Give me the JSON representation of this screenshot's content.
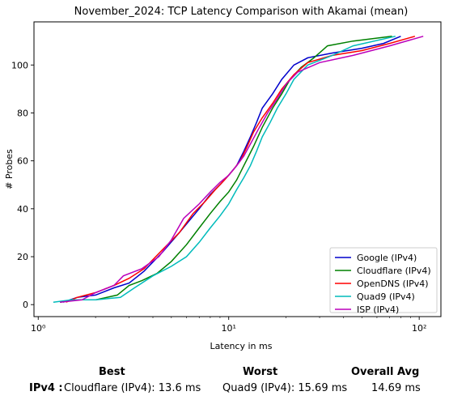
{
  "chart_data": {
    "type": "line",
    "title": "November_2024: TCP Latency Comparison with Akamai (mean)",
    "xlabel": "Latency in ms",
    "ylabel": "# Probes",
    "xscale": "log",
    "xlim": [
      0.95,
      130
    ],
    "ylim": [
      -5,
      118
    ],
    "x_ticks": [
      {
        "value": 1,
        "label": "10⁰"
      },
      {
        "value": 10,
        "label": "10¹"
      },
      {
        "value": 100,
        "label": "10²"
      }
    ],
    "y_ticks": [
      0,
      20,
      40,
      60,
      80,
      100
    ],
    "legend_position": "bottom-right",
    "grid": false,
    "series": [
      {
        "name": "Google (IPv4)",
        "color": "#0000cc",
        "points": [
          [
            1.35,
            1
          ],
          [
            1.6,
            3
          ],
          [
            2.0,
            4
          ],
          [
            2.5,
            7
          ],
          [
            3.0,
            9
          ],
          [
            3.6,
            14
          ],
          [
            4.5,
            22
          ],
          [
            5.5,
            30
          ],
          [
            7.0,
            40
          ],
          [
            8.0,
            46
          ],
          [
            9.0,
            50
          ],
          [
            10.0,
            54
          ],
          [
            11.0,
            58
          ],
          [
            12.0,
            64
          ],
          [
            13.0,
            70
          ],
          [
            14.0,
            76
          ],
          [
            15.0,
            82
          ],
          [
            17.0,
            88
          ],
          [
            19.0,
            94
          ],
          [
            22.0,
            100
          ],
          [
            26.0,
            103
          ],
          [
            35.0,
            105
          ],
          [
            50.0,
            107
          ],
          [
            65.0,
            109
          ],
          [
            80.0,
            112
          ]
        ]
      },
      {
        "name": "Cloudflare (IPv4)",
        "color": "#008000",
        "points": [
          [
            1.3,
            1
          ],
          [
            1.6,
            2
          ],
          [
            2.0,
            2
          ],
          [
            2.6,
            4
          ],
          [
            3.0,
            8
          ],
          [
            3.5,
            10
          ],
          [
            4.2,
            13
          ],
          [
            5.0,
            18
          ],
          [
            6.0,
            25
          ],
          [
            7.0,
            32
          ],
          [
            8.0,
            38
          ],
          [
            9.0,
            43
          ],
          [
            10.0,
            47
          ],
          [
            11.0,
            52
          ],
          [
            12.0,
            58
          ],
          [
            13.5,
            66
          ],
          [
            15.0,
            74
          ],
          [
            17.0,
            82
          ],
          [
            19.0,
            88
          ],
          [
            21.0,
            94
          ],
          [
            24.0,
            99
          ],
          [
            28.0,
            103
          ],
          [
            33.0,
            108
          ],
          [
            45.0,
            110
          ],
          [
            72.0,
            112
          ]
        ]
      },
      {
        "name": "OpenDNS (IPv4)",
        "color": "#ff0000",
        "points": [
          [
            1.4,
            1
          ],
          [
            1.6,
            3
          ],
          [
            2.0,
            5
          ],
          [
            2.5,
            8
          ],
          [
            3.0,
            11
          ],
          [
            3.6,
            15
          ],
          [
            4.5,
            23
          ],
          [
            5.5,
            30
          ],
          [
            6.5,
            38
          ],
          [
            7.5,
            43
          ],
          [
            8.5,
            48
          ],
          [
            9.5,
            52
          ],
          [
            10.5,
            56
          ],
          [
            11.5,
            60
          ],
          [
            12.5,
            66
          ],
          [
            13.5,
            72
          ],
          [
            15.0,
            78
          ],
          [
            17.0,
            84
          ],
          [
            19.0,
            90
          ],
          [
            22.0,
            96
          ],
          [
            26.0,
            101
          ],
          [
            35.0,
            104
          ],
          [
            50.0,
            106
          ],
          [
            70.0,
            109
          ],
          [
            95.0,
            112
          ]
        ]
      },
      {
        "name": "Quad9 (IPv4)",
        "color": "#00bbbb",
        "points": [
          [
            1.2,
            1
          ],
          [
            1.5,
            2
          ],
          [
            2.0,
            2
          ],
          [
            2.7,
            3
          ],
          [
            3.2,
            7
          ],
          [
            4.0,
            12
          ],
          [
            5.0,
            16
          ],
          [
            6.0,
            20
          ],
          [
            7.0,
            26
          ],
          [
            8.0,
            32
          ],
          [
            9.0,
            37
          ],
          [
            10.0,
            42
          ],
          [
            11.0,
            48
          ],
          [
            12.0,
            53
          ],
          [
            13.0,
            58
          ],
          [
            14.0,
            64
          ],
          [
            15.0,
            70
          ],
          [
            16.5,
            76
          ],
          [
            18.0,
            82
          ],
          [
            20.0,
            88
          ],
          [
            22.0,
            94
          ],
          [
            26.0,
            100
          ],
          [
            35.0,
            104
          ],
          [
            45.0,
            108
          ],
          [
            75.0,
            112
          ]
        ]
      },
      {
        "name": "ISP (IPv4)",
        "color": "#bb00bb",
        "points": [
          [
            1.3,
            1
          ],
          [
            1.7,
            2
          ],
          [
            2.0,
            5
          ],
          [
            2.5,
            8
          ],
          [
            2.8,
            12
          ],
          [
            3.5,
            15
          ],
          [
            4.3,
            20
          ],
          [
            5.0,
            27
          ],
          [
            5.8,
            36
          ],
          [
            7.0,
            42
          ],
          [
            8.0,
            47
          ],
          [
            9.0,
            51
          ],
          [
            10.0,
            54
          ],
          [
            11.0,
            58
          ],
          [
            12.0,
            62
          ],
          [
            13.0,
            67
          ],
          [
            14.5,
            74
          ],
          [
            16.0,
            80
          ],
          [
            18.0,
            86
          ],
          [
            20.0,
            92
          ],
          [
            23.0,
            97
          ],
          [
            30.0,
            101
          ],
          [
            45.0,
            104
          ],
          [
            70.0,
            108
          ],
          [
            105.0,
            112
          ]
        ]
      }
    ]
  },
  "summary": {
    "best_header": "Best",
    "worst_header": "Worst",
    "avg_header": "Overall Avg",
    "row_label": "IPv4 :",
    "best_value": "Cloudflare (IPv4): 13.6 ms",
    "worst_value": "Quad9 (IPv4): 15.69 ms",
    "avg_value": "14.69 ms"
  }
}
